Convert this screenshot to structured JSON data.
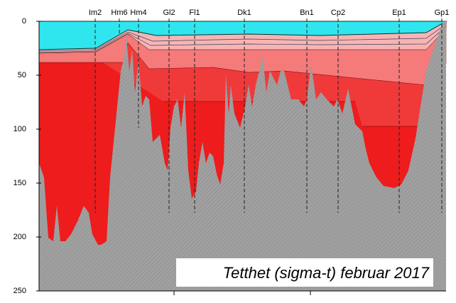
{
  "chart_data": {
    "type": "section",
    "title": "Tetthet (sigma-t) februar 2017",
    "categories": [
      "Im2",
      "Hm6",
      "Hm4",
      "Gl2",
      "Fl1",
      "Dk1",
      "Bn1",
      "Cp2",
      "Ep1",
      "Gp1"
    ],
    "ylim": [
      0,
      250
    ],
    "yticks": [
      0,
      50,
      100,
      150,
      200,
      250
    ]
  }
}
